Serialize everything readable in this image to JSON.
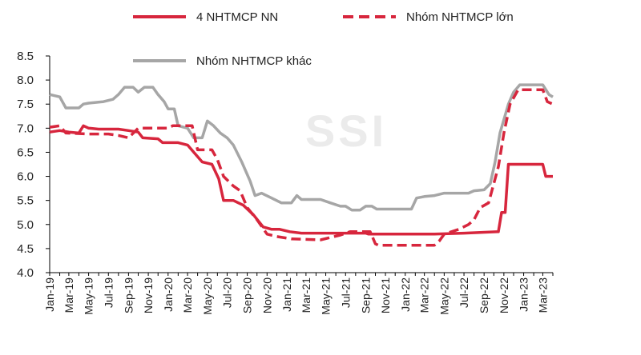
{
  "watermark": "SSI",
  "chart_data": {
    "type": "line",
    "ylim": [
      4.0,
      8.5
    ],
    "yticks": [
      "4.0",
      "4.5",
      "5.0",
      "5.5",
      "6.0",
      "6.5",
      "7.0",
      "7.5",
      "8.0",
      "8.5"
    ],
    "x_start": "2019-01",
    "x_end": "2023-04",
    "xtick_labels": [
      "Jan-19",
      "Mar-19",
      "May-19",
      "Jul-19",
      "Sep-19",
      "Nov-19",
      "Jan-20",
      "Mar-20",
      "May-20",
      "Jul-20",
      "Sep-20",
      "Nov-20",
      "Jan-21",
      "Mar-21",
      "May-21",
      "Jul-21",
      "Sep-21",
      "Nov-21",
      "Jan-22",
      "Mar-22",
      "May-22",
      "Jul-22",
      "Sep-22",
      "Nov-22",
      "Jan-23",
      "Mar-23"
    ],
    "grid": false,
    "legend": "top",
    "series": [
      {
        "name": "4 NHTMCP NN",
        "color": "#d7263d",
        "style": "solid",
        "points": [
          [
            "2019-01-01",
            6.92
          ],
          [
            "2019-02-01",
            6.95
          ],
          [
            "2019-03-01",
            6.92
          ],
          [
            "2019-04-01",
            6.9
          ],
          [
            "2019-04-15",
            7.05
          ],
          [
            "2019-05-01",
            7.0
          ],
          [
            "2019-06-01",
            6.98
          ],
          [
            "2019-08-01",
            6.98
          ],
          [
            "2019-09-01",
            6.95
          ],
          [
            "2019-10-01",
            6.92
          ],
          [
            "2019-10-15",
            6.8
          ],
          [
            "2019-12-01",
            6.78
          ],
          [
            "2019-12-15",
            6.7
          ],
          [
            "2020-02-01",
            6.7
          ],
          [
            "2020-03-01",
            6.65
          ],
          [
            "2020-03-20",
            6.5
          ],
          [
            "2020-04-15",
            6.3
          ],
          [
            "2020-05-15",
            6.25
          ],
          [
            "2020-06-05",
            5.95
          ],
          [
            "2020-06-20",
            5.5
          ],
          [
            "2020-07-20",
            5.5
          ],
          [
            "2020-08-20",
            5.4
          ],
          [
            "2020-09-20",
            5.2
          ],
          [
            "2020-10-20",
            4.95
          ],
          [
            "2020-11-15",
            4.9
          ],
          [
            "2020-12-10",
            4.9
          ],
          [
            "2021-01-10",
            4.85
          ],
          [
            "2021-02-15",
            4.82
          ],
          [
            "2021-04-01",
            4.82
          ],
          [
            "2021-09-01",
            4.82
          ],
          [
            "2021-09-10",
            4.8
          ],
          [
            "2022-04-01",
            4.8
          ],
          [
            "2022-07-01",
            4.82
          ],
          [
            "2022-10-15",
            4.85
          ],
          [
            "2022-10-25",
            5.25
          ],
          [
            "2022-11-05",
            5.25
          ],
          [
            "2022-11-15",
            6.25
          ],
          [
            "2023-03-01",
            6.25
          ],
          [
            "2023-03-10",
            6.0
          ],
          [
            "2023-04-01",
            6.0
          ]
        ]
      },
      {
        "name": "Nhóm NHTMCP lớn",
        "color": "#d7263d",
        "style": "dashed",
        "points": [
          [
            "2019-01-01",
            7.02
          ],
          [
            "2019-02-01",
            7.05
          ],
          [
            "2019-02-20",
            6.9
          ],
          [
            "2019-05-01",
            6.88
          ],
          [
            "2019-07-01",
            6.88
          ],
          [
            "2019-08-01",
            6.85
          ],
          [
            "2019-09-01",
            6.8
          ],
          [
            "2019-10-01",
            7.0
          ],
          [
            "2020-01-01",
            7.0
          ],
          [
            "2020-01-15",
            7.05
          ],
          [
            "2020-03-15",
            7.05
          ],
          [
            "2020-04-01",
            6.55
          ],
          [
            "2020-05-15",
            6.55
          ],
          [
            "2020-06-01",
            6.35
          ],
          [
            "2020-06-20",
            6.0
          ],
          [
            "2020-07-20",
            5.8
          ],
          [
            "2020-08-10",
            5.7
          ],
          [
            "2020-09-01",
            5.35
          ],
          [
            "2020-10-01",
            5.1
          ],
          [
            "2020-11-01",
            4.8
          ],
          [
            "2020-12-01",
            4.75
          ],
          [
            "2021-01-15",
            4.7
          ],
          [
            "2021-04-15",
            4.68
          ],
          [
            "2021-06-15",
            4.78
          ],
          [
            "2021-07-15",
            4.85
          ],
          [
            "2021-09-15",
            4.85
          ],
          [
            "2021-10-01",
            4.6
          ],
          [
            "2021-10-10",
            4.57
          ],
          [
            "2022-04-01",
            4.57
          ],
          [
            "2022-04-15",
            4.65
          ],
          [
            "2022-05-01",
            4.8
          ],
          [
            "2022-06-15",
            4.9
          ],
          [
            "2022-07-15",
            5.0
          ],
          [
            "2022-08-01",
            5.1
          ],
          [
            "2022-08-20",
            5.35
          ],
          [
            "2022-09-15",
            5.45
          ],
          [
            "2022-10-01",
            5.85
          ],
          [
            "2022-10-15",
            6.2
          ],
          [
            "2022-11-01",
            6.9
          ],
          [
            "2022-11-20",
            7.5
          ],
          [
            "2022-12-15",
            7.8
          ],
          [
            "2023-03-01",
            7.8
          ],
          [
            "2023-03-15",
            7.55
          ],
          [
            "2023-04-01",
            7.5
          ]
        ]
      },
      {
        "name": "Nhóm NHTMCP khác",
        "color": "#a6a6a6",
        "style": "solid",
        "points": [
          [
            "2019-01-01",
            7.7
          ],
          [
            "2019-02-01",
            7.65
          ],
          [
            "2019-02-20",
            7.42
          ],
          [
            "2019-04-01",
            7.42
          ],
          [
            "2019-04-15",
            7.5
          ],
          [
            "2019-05-01",
            7.52
          ],
          [
            "2019-06-15",
            7.55
          ],
          [
            "2019-07-15",
            7.6
          ],
          [
            "2019-08-01",
            7.7
          ],
          [
            "2019-08-20",
            7.85
          ],
          [
            "2019-09-15",
            7.85
          ],
          [
            "2019-10-01",
            7.75
          ],
          [
            "2019-10-20",
            7.85
          ],
          [
            "2019-11-15",
            7.85
          ],
          [
            "2019-12-01",
            7.7
          ],
          [
            "2019-12-20",
            7.55
          ],
          [
            "2020-01-01",
            7.4
          ],
          [
            "2020-01-20",
            7.4
          ],
          [
            "2020-02-01",
            7.05
          ],
          [
            "2020-03-01",
            7.0
          ],
          [
            "2020-03-20",
            6.8
          ],
          [
            "2020-04-15",
            6.8
          ],
          [
            "2020-05-01",
            7.15
          ],
          [
            "2020-05-20",
            7.05
          ],
          [
            "2020-06-10",
            6.9
          ],
          [
            "2020-07-01",
            6.8
          ],
          [
            "2020-07-20",
            6.65
          ],
          [
            "2020-08-15",
            6.3
          ],
          [
            "2020-09-10",
            5.9
          ],
          [
            "2020-09-25",
            5.6
          ],
          [
            "2020-10-15",
            5.65
          ],
          [
            "2020-11-15",
            5.55
          ],
          [
            "2020-12-15",
            5.45
          ],
          [
            "2021-01-15",
            5.45
          ],
          [
            "2021-02-01",
            5.6
          ],
          [
            "2021-02-15",
            5.52
          ],
          [
            "2021-04-15",
            5.52
          ],
          [
            "2021-05-15",
            5.45
          ],
          [
            "2021-06-15",
            5.38
          ],
          [
            "2021-07-01",
            5.38
          ],
          [
            "2021-07-20",
            5.3
          ],
          [
            "2021-08-15",
            5.3
          ],
          [
            "2021-09-01",
            5.38
          ],
          [
            "2021-09-20",
            5.38
          ],
          [
            "2021-10-05",
            5.32
          ],
          [
            "2022-01-20",
            5.32
          ],
          [
            "2022-02-05",
            5.55
          ],
          [
            "2022-03-01",
            5.58
          ],
          [
            "2022-04-01",
            5.6
          ],
          [
            "2022-05-01",
            5.65
          ],
          [
            "2022-07-15",
            5.65
          ],
          [
            "2022-08-01",
            5.7
          ],
          [
            "2022-09-01",
            5.72
          ],
          [
            "2022-09-20",
            5.85
          ],
          [
            "2022-10-05",
            6.3
          ],
          [
            "2022-10-20",
            6.9
          ],
          [
            "2022-11-15",
            7.5
          ],
          [
            "2022-12-01",
            7.75
          ],
          [
            "2022-12-20",
            7.9
          ],
          [
            "2023-02-15",
            7.9
          ],
          [
            "2023-03-01",
            7.9
          ],
          [
            "2023-03-20",
            7.7
          ],
          [
            "2023-04-01",
            7.65
          ]
        ]
      }
    ]
  }
}
